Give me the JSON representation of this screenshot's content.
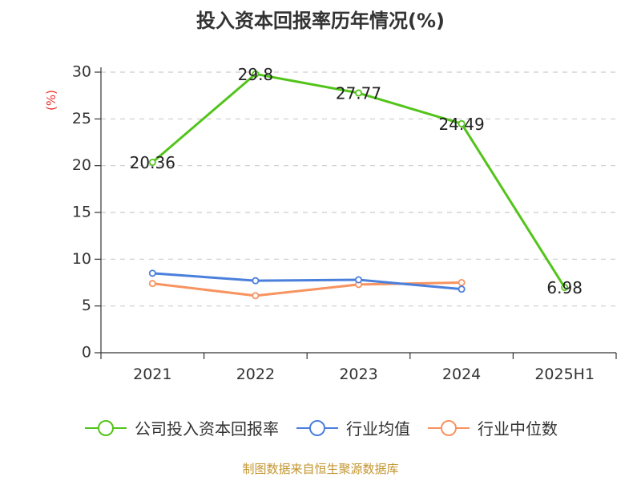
{
  "chart_data": {
    "type": "line",
    "title": "投入资本回报率历年情况(%)",
    "ylabel": "(%)",
    "categories": [
      "2021",
      "2022",
      "2023",
      "2024",
      "2025H1"
    ],
    "ylim": [
      0,
      30
    ],
    "yticks": [
      "0",
      "5",
      "10",
      "15",
      "20",
      "25",
      "30"
    ],
    "grid": true,
    "legend_position": "bottom",
    "series": [
      {
        "name": "公司投入资本回报率",
        "color": "#52c41a",
        "values": [
          20.36,
          29.8,
          27.77,
          24.49,
          6.98
        ],
        "labels": [
          "20.36",
          "29.8",
          "27.77",
          "24.49",
          "6.98"
        ]
      },
      {
        "name": "行业均值",
        "color": "#4a7fdc",
        "values": [
          8.5,
          7.7,
          7.8,
          6.8,
          null
        ]
      },
      {
        "name": "行业中位数",
        "color": "#f7935f",
        "values": [
          7.4,
          6.1,
          7.3,
          7.5,
          null
        ]
      }
    ]
  },
  "source_note": "制图数据来自恒生聚源数据库"
}
